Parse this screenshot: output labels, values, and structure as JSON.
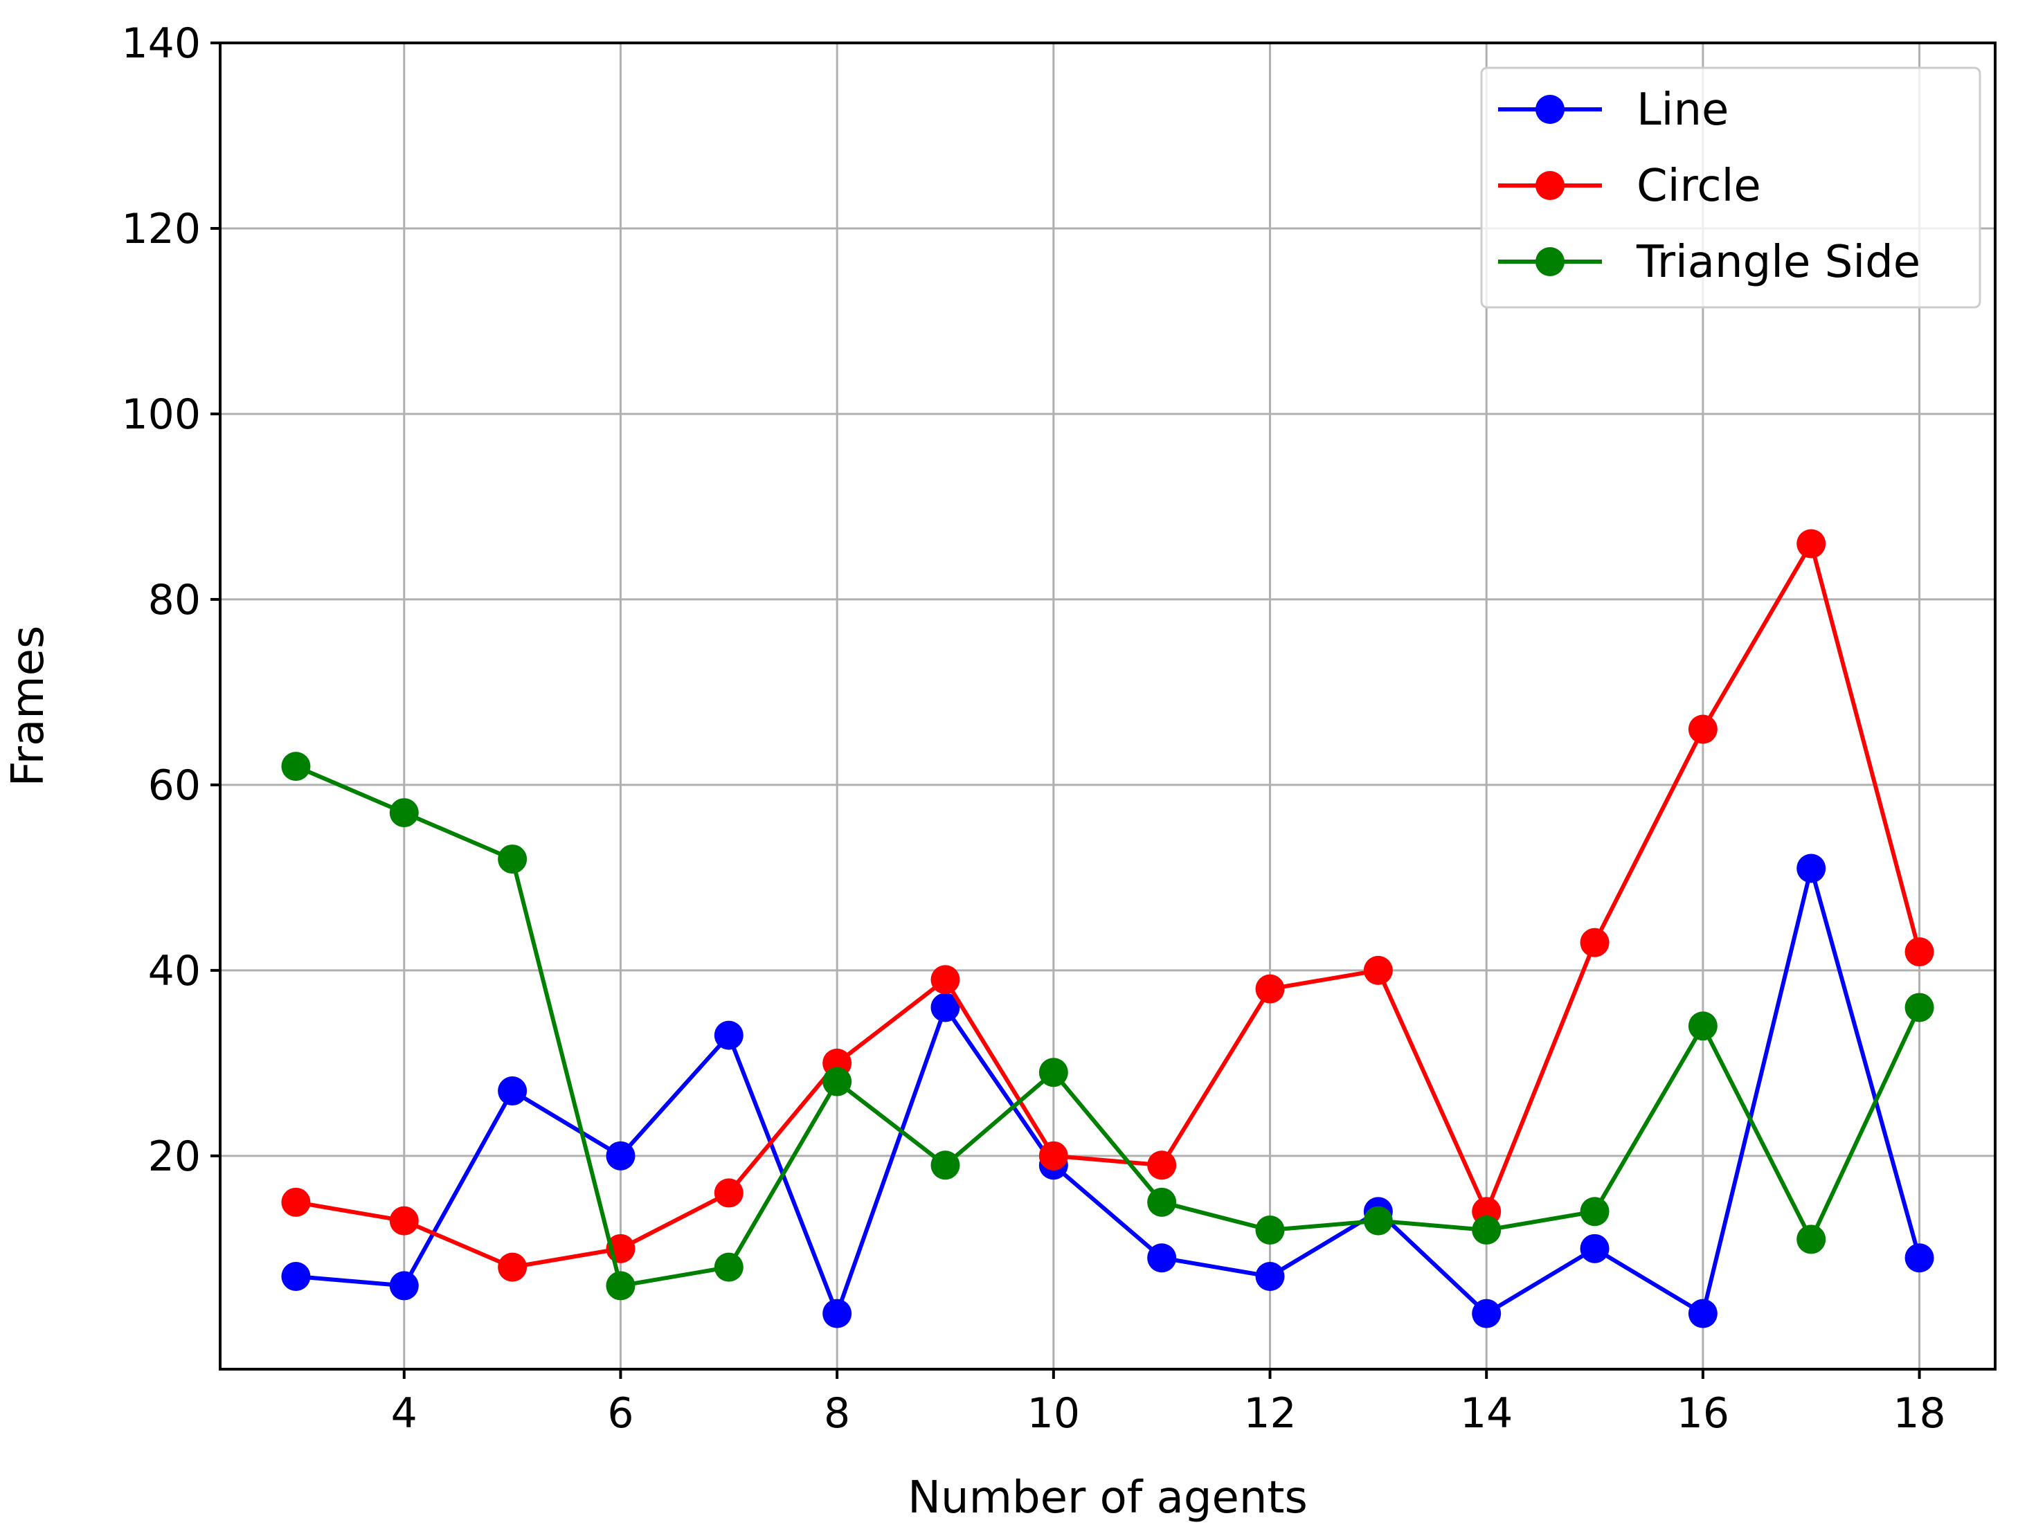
{
  "chart_data": {
    "type": "line",
    "xlabel": "Number of agents",
    "ylabel": "Frames",
    "xlim": [
      2.3,
      18.7
    ],
    "ylim": [
      -3,
      140
    ],
    "x_ticks": [
      4,
      6,
      8,
      10,
      12,
      14,
      16,
      18
    ],
    "y_ticks": [
      20,
      40,
      60,
      80,
      100,
      120,
      140
    ],
    "grid": true,
    "legend_position": "top-right",
    "x": [
      3,
      4,
      5,
      6,
      7,
      8,
      9,
      10,
      11,
      12,
      13,
      14,
      15,
      16,
      17,
      18
    ],
    "series": [
      {
        "name": "Line",
        "color": "#0000ff",
        "marker": "circle",
        "values": [
          7,
          6,
          27,
          20,
          33,
          3,
          36,
          19,
          9,
          7,
          14,
          3,
          10,
          3,
          51,
          9
        ]
      },
      {
        "name": "Circle",
        "color": "#ff0000",
        "marker": "circle",
        "values": [
          15,
          13,
          8,
          10,
          16,
          30,
          39,
          20,
          19,
          38,
          40,
          14,
          43,
          66,
          86,
          42
        ]
      },
      {
        "name": "Triangle Side",
        "color": "#008000",
        "marker": "circle",
        "values": [
          62,
          57,
          52,
          6,
          8,
          28,
          19,
          29,
          15,
          12,
          13,
          12,
          14,
          34,
          11,
          36
        ]
      }
    ]
  }
}
